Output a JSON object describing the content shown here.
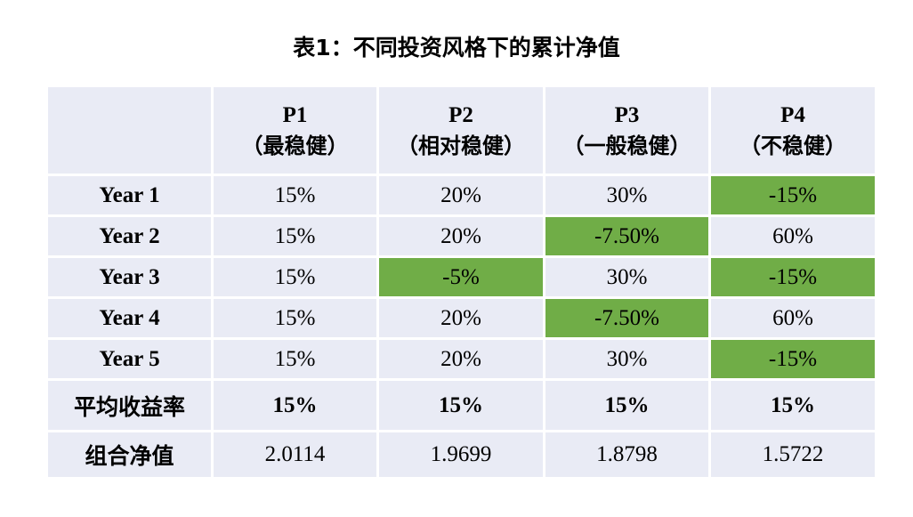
{
  "title": "表1：不同投资风格下的累计净值",
  "table": {
    "header": [
      {
        "name": "P1",
        "style": "（最稳健）"
      },
      {
        "name": "P2",
        "style": "（相对稳健）"
      },
      {
        "name": "P3",
        "style": "（一般稳健）"
      },
      {
        "name": "P4",
        "style": "（不稳健）"
      }
    ],
    "rows": [
      {
        "label": "Year 1",
        "cells": [
          "15%",
          "20%",
          "30%",
          "-15%"
        ]
      },
      {
        "label": "Year 2",
        "cells": [
          "15%",
          "20%",
          "-7.50%",
          "60%"
        ]
      },
      {
        "label": "Year 3",
        "cells": [
          "15%",
          "-5%",
          "30%",
          "-15%"
        ]
      },
      {
        "label": "Year 4",
        "cells": [
          "15%",
          "20%",
          "-7.50%",
          "60%"
        ]
      },
      {
        "label": "Year 5",
        "cells": [
          "15%",
          "20%",
          "30%",
          "-15%"
        ]
      }
    ],
    "average": {
      "label": "平均收益率",
      "cells": [
        "15%",
        "15%",
        "15%",
        "15%"
      ]
    },
    "net_value": {
      "label": "组合净值",
      "cells": [
        "2.0114",
        "1.9699",
        "1.8798",
        "1.5722"
      ]
    }
  }
}
